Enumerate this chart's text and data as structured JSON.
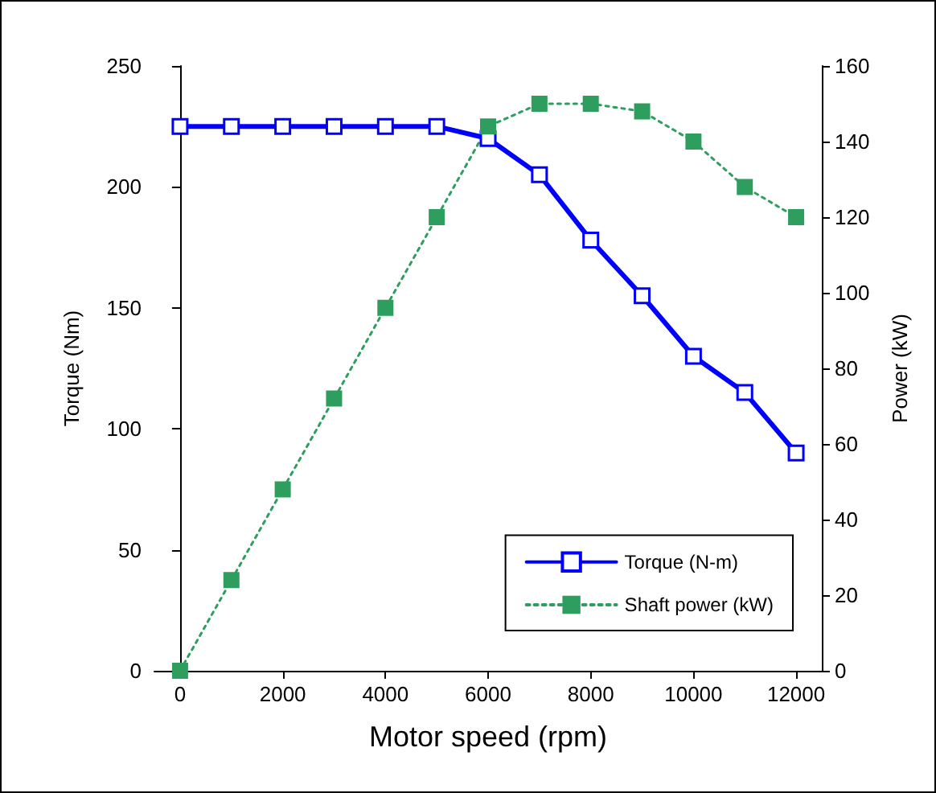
{
  "chart_data": {
    "type": "line",
    "xlabel": "Motor speed (rpm)",
    "ylabel": "Torque (Nm)",
    "y2label": "Power (kW)",
    "x": [
      0,
      1000,
      2000,
      3000,
      4000,
      5000,
      6000,
      7000,
      8000,
      9000,
      10000,
      11000,
      12000
    ],
    "series": [
      {
        "name": "Torque (N-m)",
        "color": "#0000ff",
        "marker": "square",
        "line_style": "solid",
        "values": [
          225,
          225,
          225,
          225,
          225,
          225,
          220,
          205,
          178,
          155,
          130,
          115,
          90
        ]
      },
      {
        "name": "Shaft power (kW)",
        "color": "#2e9e5e",
        "marker": "square",
        "line_style": "dotted",
        "axis": "y2",
        "values": [
          0,
          24,
          48,
          72,
          96,
          120,
          144,
          150,
          150,
          148,
          140,
          128,
          120
        ]
      }
    ],
    "xlim": [
      -500,
      12500
    ],
    "xticks": [
      0,
      2000,
      4000,
      6000,
      8000,
      10000,
      12000
    ],
    "ylim": [
      0,
      250
    ],
    "yticks": [
      0,
      50,
      100,
      150,
      200,
      250
    ],
    "y2lim": [
      0,
      160
    ],
    "y2ticks": [
      0,
      20,
      40,
      60,
      80,
      100,
      120,
      140,
      160
    ],
    "grid": false,
    "legend": "bottom right"
  }
}
